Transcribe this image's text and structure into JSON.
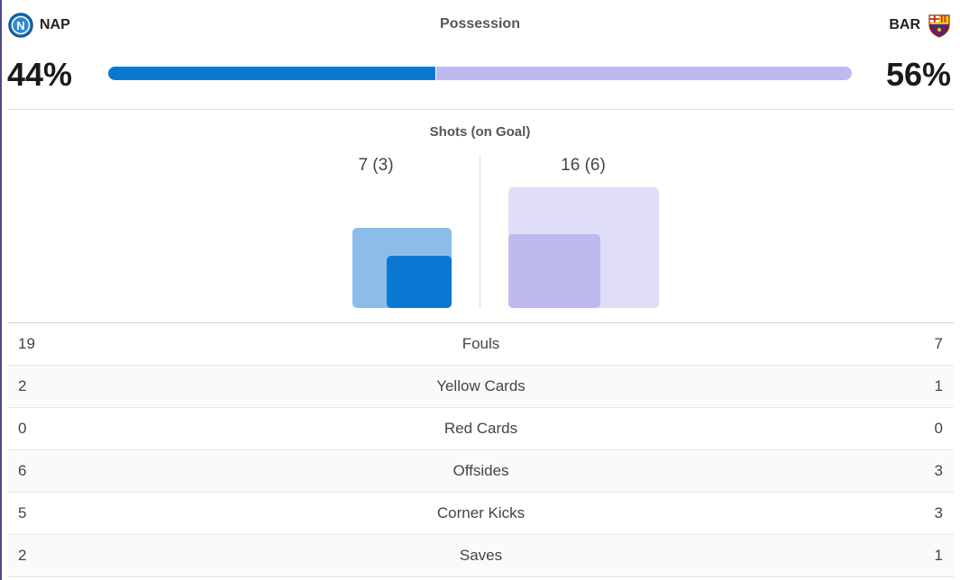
{
  "possession": {
    "title": "Possession",
    "home": {
      "abbr": "NAP",
      "percent_label": "44%",
      "value": 44,
      "badge_icon": "napoli-crest-icon",
      "color": "#0a78d2"
    },
    "away": {
      "abbr": "BAR",
      "percent_label": "56%",
      "value": 56,
      "badge_icon": "barcelona-crest-icon",
      "color": "#bcbaee"
    }
  },
  "shots": {
    "title": "Shots (on Goal)",
    "home": {
      "label": "7 (3)",
      "total": 7,
      "on_goal": 3
    },
    "away": {
      "label": "16 (6)",
      "total": 16,
      "on_goal": 6
    }
  },
  "stats": [
    {
      "label": "Fouls",
      "home": "19",
      "away": "7"
    },
    {
      "label": "Yellow Cards",
      "home": "2",
      "away": "1"
    },
    {
      "label": "Red Cards",
      "home": "0",
      "away": "0"
    },
    {
      "label": "Offsides",
      "home": "6",
      "away": "3"
    },
    {
      "label": "Corner Kicks",
      "home": "5",
      "away": "3"
    },
    {
      "label": "Saves",
      "home": "2",
      "away": "1"
    }
  ]
}
